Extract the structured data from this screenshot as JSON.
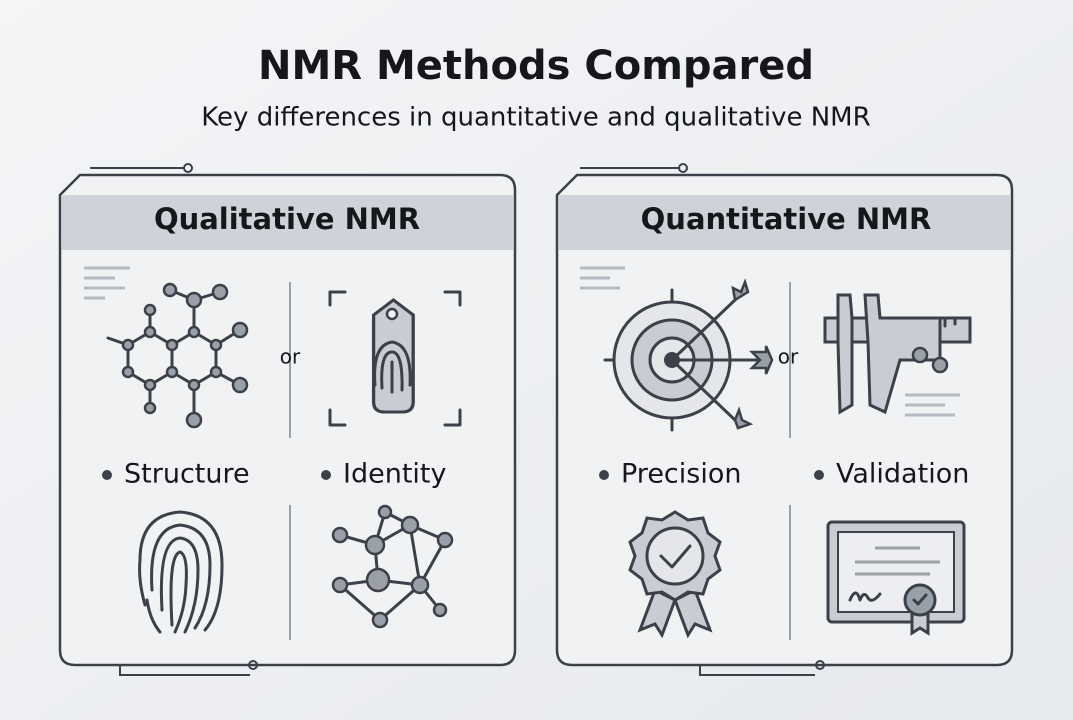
{
  "header": {
    "title": "NMR Methods Compared",
    "subtitle": "Key differences in quantitative and qualitative NMR"
  },
  "panels": [
    {
      "title": "Qualitative NMR",
      "separator": "or",
      "items": [
        "Structure",
        "Identity"
      ]
    },
    {
      "title": "Quantitative NMR",
      "separator": "or",
      "items": [
        "Precision",
        "Validation"
      ]
    }
  ]
}
